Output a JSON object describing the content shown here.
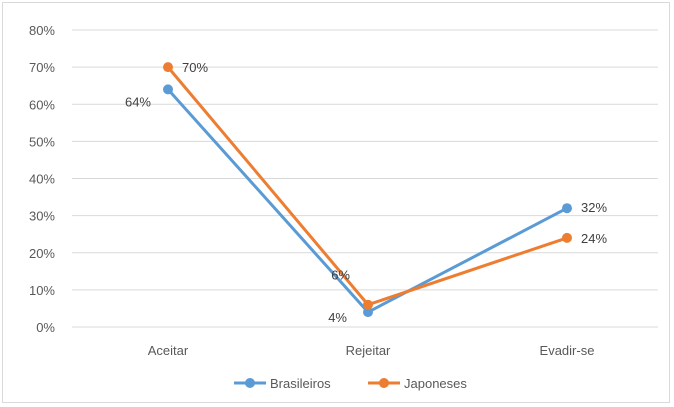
{
  "chart_data": {
    "type": "line",
    "categories": [
      "Aceitar",
      "Rejeitar",
      "Evadir-se"
    ],
    "series": [
      {
        "name": "Brasileiros",
        "values": [
          64,
          4,
          32
        ],
        "labels": [
          "64%",
          "4%",
          "32%"
        ],
        "color": "#5b9bd5"
      },
      {
        "name": "Japoneses",
        "values": [
          70,
          6,
          24
        ],
        "labels": [
          "70%",
          "6%",
          "24%"
        ],
        "color": "#ed7d31"
      }
    ],
    "ylim": [
      0,
      80
    ],
    "yticks": [
      "0%",
      "10%",
      "20%",
      "30%",
      "40%",
      "50%",
      "60%",
      "70%",
      "80%"
    ],
    "grid": true,
    "legend_position": "bottom"
  }
}
